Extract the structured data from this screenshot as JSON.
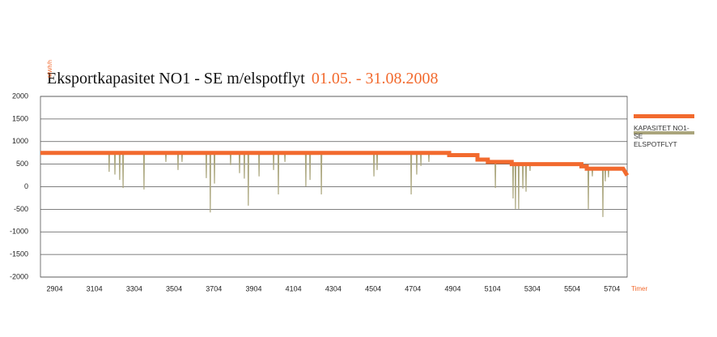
{
  "chart_data": {
    "type": "line",
    "title": "Eksportkapasitet NO1 - SE m/elspotflyt",
    "subtitle": "01.05. - 31.08.2008",
    "y_label": "MWh/h",
    "x_label": "Timer",
    "xlim": [
      2833,
      5780
    ],
    "xticks": [
      2904,
      3104,
      3304,
      3504,
      3704,
      3904,
      4104,
      4304,
      4504,
      4704,
      4904,
      5104,
      5304,
      5504,
      5704
    ],
    "ylim": [
      -2000,
      2000
    ],
    "yticks": [
      2000,
      1500,
      1000,
      500,
      0,
      -500,
      -1000,
      -1500,
      -2000
    ],
    "grid": true,
    "series": [
      {
        "name": "KAPASITET NO1-SE",
        "color": "#f26a2e",
        "x": [
          2833,
          4886,
          4886,
          5028,
          5028,
          5080,
          5080,
          5200,
          5200,
          5550,
          5550,
          5577,
          5577,
          5760,
          5780
        ],
        "values": [
          750,
          750,
          700,
          700,
          600,
          600,
          550,
          550,
          500,
          500,
          450,
          450,
          400,
          400,
          250
        ]
      },
      {
        "name": "ELSPOTFLYT",
        "color": "#aaa57c",
        "x": [
          2833,
          3176,
          3178,
          3180,
          3205,
          3207,
          3209,
          3229,
          3231,
          3233,
          3246,
          3248,
          3250,
          3351,
          3353,
          3355,
          3461,
          3463,
          3465,
          3522,
          3524,
          3526,
          3542,
          3544,
          3546,
          3664,
          3666,
          3668,
          3684,
          3686,
          3688,
          3705,
          3707,
          3709,
          3786,
          3788,
          3790,
          3831,
          3833,
          3835,
          3855,
          3857,
          3859,
          3875,
          3877,
          3879,
          3929,
          3931,
          3933,
          4002,
          4004,
          4006,
          4026,
          4028,
          4030,
          4059,
          4061,
          4063,
          4164,
          4166,
          4168,
          4185,
          4187,
          4189,
          4242,
          4244,
          4246,
          4506,
          4508,
          4510,
          4522,
          4524,
          4526,
          4693,
          4695,
          4697,
          4721,
          4723,
          4725,
          4742,
          4744,
          4746,
          4782,
          4784,
          4786,
          4886,
          4886,
          5028,
          5028,
          5080,
          5080,
          5116,
          5118,
          5120,
          5200,
          5200,
          5205,
          5207,
          5209,
          5217,
          5219,
          5221,
          5233,
          5235,
          5237,
          5254,
          5256,
          5258,
          5270,
          5272,
          5274,
          5290,
          5292,
          5294,
          5550,
          5550,
          5577,
          5577,
          5583,
          5585,
          5587,
          5603,
          5605,
          5607,
          5656,
          5658,
          5660,
          5668,
          5670,
          5672,
          5684,
          5686,
          5688,
          5760
        ],
        "values": [
          750,
          750,
          330,
          750,
          750,
          270,
          750,
          750,
          150,
          750,
          750,
          -30,
          750,
          750,
          -60,
          750,
          750,
          550,
          750,
          750,
          370,
          750,
          750,
          550,
          750,
          750,
          190,
          750,
          750,
          -570,
          750,
          750,
          70,
          750,
          750,
          480,
          750,
          750,
          300,
          750,
          750,
          180,
          750,
          750,
          -420,
          750,
          750,
          230,
          750,
          750,
          370,
          750,
          750,
          -170,
          750,
          750,
          550,
          750,
          750,
          10,
          750,
          750,
          150,
          750,
          750,
          -170,
          750,
          750,
          230,
          750,
          750,
          370,
          750,
          750,
          -170,
          750,
          750,
          270,
          750,
          750,
          460,
          750,
          750,
          550,
          750,
          750,
          700,
          700,
          600,
          600,
          550,
          550,
          -30,
          550,
          550,
          500,
          500,
          -260,
          500,
          500,
          -490,
          500,
          500,
          -490,
          500,
          500,
          -40,
          500,
          500,
          -110,
          500,
          500,
          350,
          500,
          500,
          450,
          450,
          400,
          400,
          -490,
          400,
          400,
          230,
          400,
          400,
          -670,
          400,
          400,
          120,
          400,
          400,
          210,
          400,
          400
        ]
      }
    ]
  }
}
